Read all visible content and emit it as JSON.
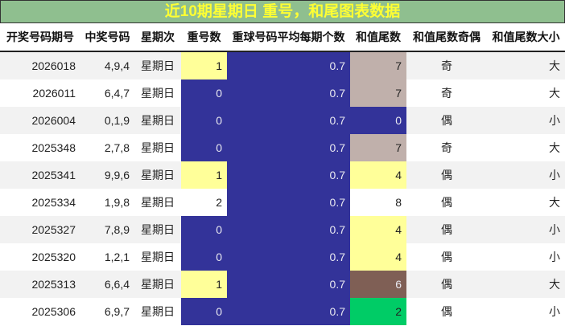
{
  "title": "近10期星期日 重号，和尾图表数据",
  "headers": [
    "开奖号码期号",
    "中奖号码",
    "星期次",
    "重号数",
    "重球号码平均每期个数",
    "和值尾数",
    "和值尾数奇偶",
    "和值尾数大小"
  ],
  "colors": {
    "yellow": "#ffff99",
    "blue": "#333399",
    "tan": "#c0b0ab",
    "brown": "#7f5f55",
    "green": "#00cc66",
    "white": "#ffffff"
  },
  "rows": [
    [
      "2026018",
      "4,9,4",
      "星期日",
      "1",
      "0.7",
      "7",
      "奇",
      "大"
    ],
    [
      "2026011",
      "6,4,7",
      "星期日",
      "0",
      "0.7",
      "7",
      "奇",
      "大"
    ],
    [
      "2026004",
      "0,1,9",
      "星期日",
      "0",
      "0.7",
      "0",
      "偶",
      "小"
    ],
    [
      "2025348",
      "2,7,8",
      "星期日",
      "0",
      "0.7",
      "7",
      "奇",
      "大"
    ],
    [
      "2025341",
      "9,9,6",
      "星期日",
      "1",
      "0.7",
      "4",
      "偶",
      "小"
    ],
    [
      "2025334",
      "1,9,8",
      "星期日",
      "2",
      "0.7",
      "8",
      "偶",
      "大"
    ],
    [
      "2025327",
      "7,8,9",
      "星期日",
      "0",
      "0.7",
      "4",
      "偶",
      "小"
    ],
    [
      "2025320",
      "1,2,1",
      "星期日",
      "0",
      "0.7",
      "4",
      "偶",
      "小"
    ],
    [
      "2025313",
      "6,6,4",
      "星期日",
      "1",
      "0.7",
      "6",
      "偶",
      "大"
    ],
    [
      "2025306",
      "6,9,7",
      "星期日",
      "0",
      "0.7",
      "2",
      "偶",
      "小"
    ]
  ]
}
